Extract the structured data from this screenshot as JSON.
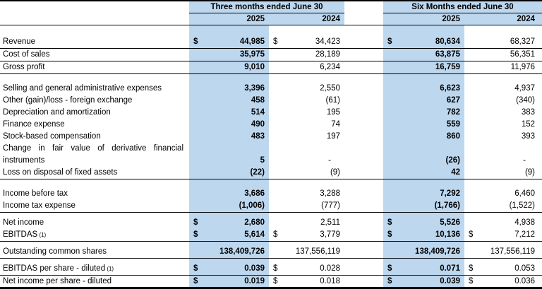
{
  "table": {
    "highlight_color": "#BDD7EE",
    "col_groups": [
      {
        "label": "Three months ended June 30",
        "years": [
          "2025",
          "2024"
        ]
      },
      {
        "label": "Six Months ended June 30",
        "years": [
          "2025",
          "2024"
        ]
      }
    ],
    "rows": [
      {
        "label": "Revenue",
        "cells": [
          {
            "cur": "$",
            "val": "44,985"
          },
          {
            "cur": "$",
            "val": "34,423"
          },
          {
            "cur": "$",
            "val": "80,634"
          },
          {
            "cur": "",
            "val": "68,327"
          }
        ],
        "underline": true
      },
      {
        "label": "Cost of sales",
        "cells": [
          {
            "cur": "",
            "val": "35,975"
          },
          {
            "cur": "",
            "val": "28,189"
          },
          {
            "cur": "",
            "val": "63,875"
          },
          {
            "cur": "",
            "val": "56,351"
          }
        ],
        "underline": true
      },
      {
        "label": "Gross profit",
        "cells": [
          {
            "cur": "",
            "val": "9,010"
          },
          {
            "cur": "",
            "val": "6,234"
          },
          {
            "cur": "",
            "val": "16,759"
          },
          {
            "cur": "",
            "val": "11,976"
          }
        ],
        "underline": true
      },
      {
        "label": "Selling and general administrative expenses",
        "cells": [
          {
            "cur": "",
            "val": "3,396"
          },
          {
            "cur": "",
            "val": "2,550"
          },
          {
            "cur": "",
            "val": "6,623"
          },
          {
            "cur": "",
            "val": "4,937"
          }
        ],
        "gap_above": true
      },
      {
        "label": "Other (gain)/loss - foreign exchange",
        "cells": [
          {
            "cur": "",
            "val": "458"
          },
          {
            "cur": "",
            "val": "(61)"
          },
          {
            "cur": "",
            "val": "627"
          },
          {
            "cur": "",
            "val": "(340)"
          }
        ]
      },
      {
        "label": "Depreciation and amortization",
        "cells": [
          {
            "cur": "",
            "val": "514"
          },
          {
            "cur": "",
            "val": "195"
          },
          {
            "cur": "",
            "val": "782"
          },
          {
            "cur": "",
            "val": "383"
          }
        ]
      },
      {
        "label": "Finance expense",
        "cells": [
          {
            "cur": "",
            "val": "490"
          },
          {
            "cur": "",
            "val": "74"
          },
          {
            "cur": "",
            "val": "559"
          },
          {
            "cur": "",
            "val": "152"
          }
        ]
      },
      {
        "label": "Stock-based compensation",
        "cells": [
          {
            "cur": "",
            "val": "483"
          },
          {
            "cur": "",
            "val": "197"
          },
          {
            "cur": "",
            "val": "860"
          },
          {
            "cur": "",
            "val": "393"
          }
        ]
      },
      {
        "label": "Change in fair value of derivative financial instruments",
        "cells": [
          {
            "cur": "",
            "val": "5"
          },
          {
            "cur": "",
            "val": "-"
          },
          {
            "cur": "",
            "val": "(26)"
          },
          {
            "cur": "",
            "val": "-"
          }
        ],
        "wrap_label": true
      },
      {
        "label": "Loss on disposal of fixed assets",
        "cells": [
          {
            "cur": "",
            "val": "(22)"
          },
          {
            "cur": "",
            "val": "(9)"
          },
          {
            "cur": "",
            "val": "42"
          },
          {
            "cur": "",
            "val": "(9)"
          }
        ],
        "underline": true
      },
      {
        "label": "Income before tax",
        "cells": [
          {
            "cur": "",
            "val": "3,686"
          },
          {
            "cur": "",
            "val": "3,288"
          },
          {
            "cur": "",
            "val": "7,292"
          },
          {
            "cur": "",
            "val": "6,460"
          }
        ],
        "gap_above": true
      },
      {
        "label": "Income tax expense",
        "cells": [
          {
            "cur": "",
            "val": "(1,006)"
          },
          {
            "cur": "",
            "val": "(777)"
          },
          {
            "cur": "",
            "val": "(1,766)"
          },
          {
            "cur": "",
            "val": "(1,522)"
          }
        ],
        "underline": true
      },
      {
        "label": "Net income",
        "cells": [
          {
            "cur": "$",
            "val": "2,680"
          },
          {
            "cur": "",
            "val": "2,511"
          },
          {
            "cur": "$",
            "val": "5,526"
          },
          {
            "cur": "",
            "val": "4,938"
          }
        ],
        "gap_above_sm": true
      },
      {
        "label": "EBITDAS",
        "footnote": "(1)",
        "cells": [
          {
            "cur": "$",
            "val": "5,614"
          },
          {
            "cur": "$",
            "val": "3,779"
          },
          {
            "cur": "$",
            "val": "10,136"
          },
          {
            "cur": "$",
            "val": "7,212"
          }
        ],
        "underline": true
      },
      {
        "label": "Outstanding common shares",
        "cells": [
          {
            "cur": "",
            "val": "138,409,726"
          },
          {
            "cur": "",
            "val": "137,556,119"
          },
          {
            "cur": "",
            "val": "138,409,726"
          },
          {
            "cur": "",
            "val": "137,556,119"
          }
        ],
        "underline": true,
        "gap_above_sm": true
      },
      {
        "label": "EBITDAS per share - diluted",
        "footnote": "(1)",
        "cells": [
          {
            "cur": "$",
            "val": "0.039"
          },
          {
            "cur": "$",
            "val": "0.028"
          },
          {
            "cur": "$",
            "val": "0.071"
          },
          {
            "cur": "$",
            "val": "0.053"
          }
        ],
        "underline": true,
        "gap_above_sm": true
      },
      {
        "label": "Net income per share - diluted",
        "cells": [
          {
            "cur": "$",
            "val": "0.019"
          },
          {
            "cur": "$",
            "val": "0.018"
          },
          {
            "cur": "$",
            "val": "0.039"
          },
          {
            "cur": "$",
            "val": "0.036"
          }
        ]
      }
    ]
  }
}
